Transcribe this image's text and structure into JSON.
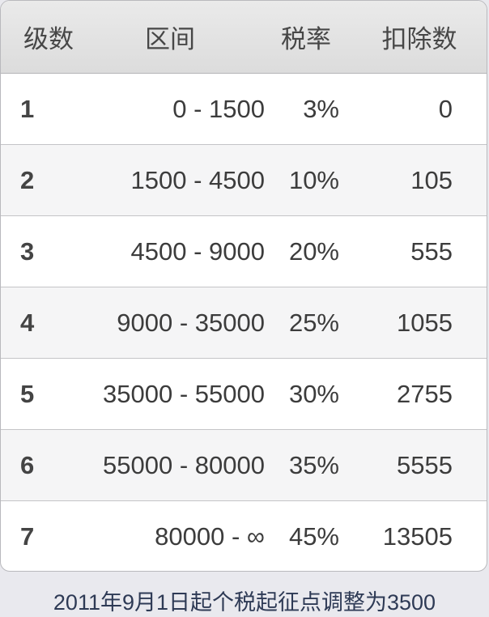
{
  "table": {
    "headers": [
      "级数",
      "区间",
      "税率",
      "扣除数"
    ],
    "rows": [
      {
        "level": "1",
        "range": "0 - 1500",
        "rate": "3%",
        "deduction": "0"
      },
      {
        "level": "2",
        "range": "1500 - 4500",
        "rate": "10%",
        "deduction": "105"
      },
      {
        "level": "3",
        "range": "4500 - 9000",
        "rate": "20%",
        "deduction": "555"
      },
      {
        "level": "4",
        "range": "9000 - 35000",
        "rate": "25%",
        "deduction": "1055"
      },
      {
        "level": "5",
        "range": "35000 - 55000",
        "rate": "30%",
        "deduction": "2755"
      },
      {
        "level": "6",
        "range": "55000 - 80000",
        "rate": "35%",
        "deduction": "5555"
      },
      {
        "level": "7",
        "range": "80000 - ∞",
        "rate": "45%",
        "deduction": "13505"
      }
    ]
  },
  "footer": {
    "note": "2011年9月1日起个税起征点调整为3500"
  },
  "colors": {
    "header_bg": "#dfdfdf",
    "row_alt_bg": "#f5f5f6",
    "footer_text": "#2e3a55"
  }
}
